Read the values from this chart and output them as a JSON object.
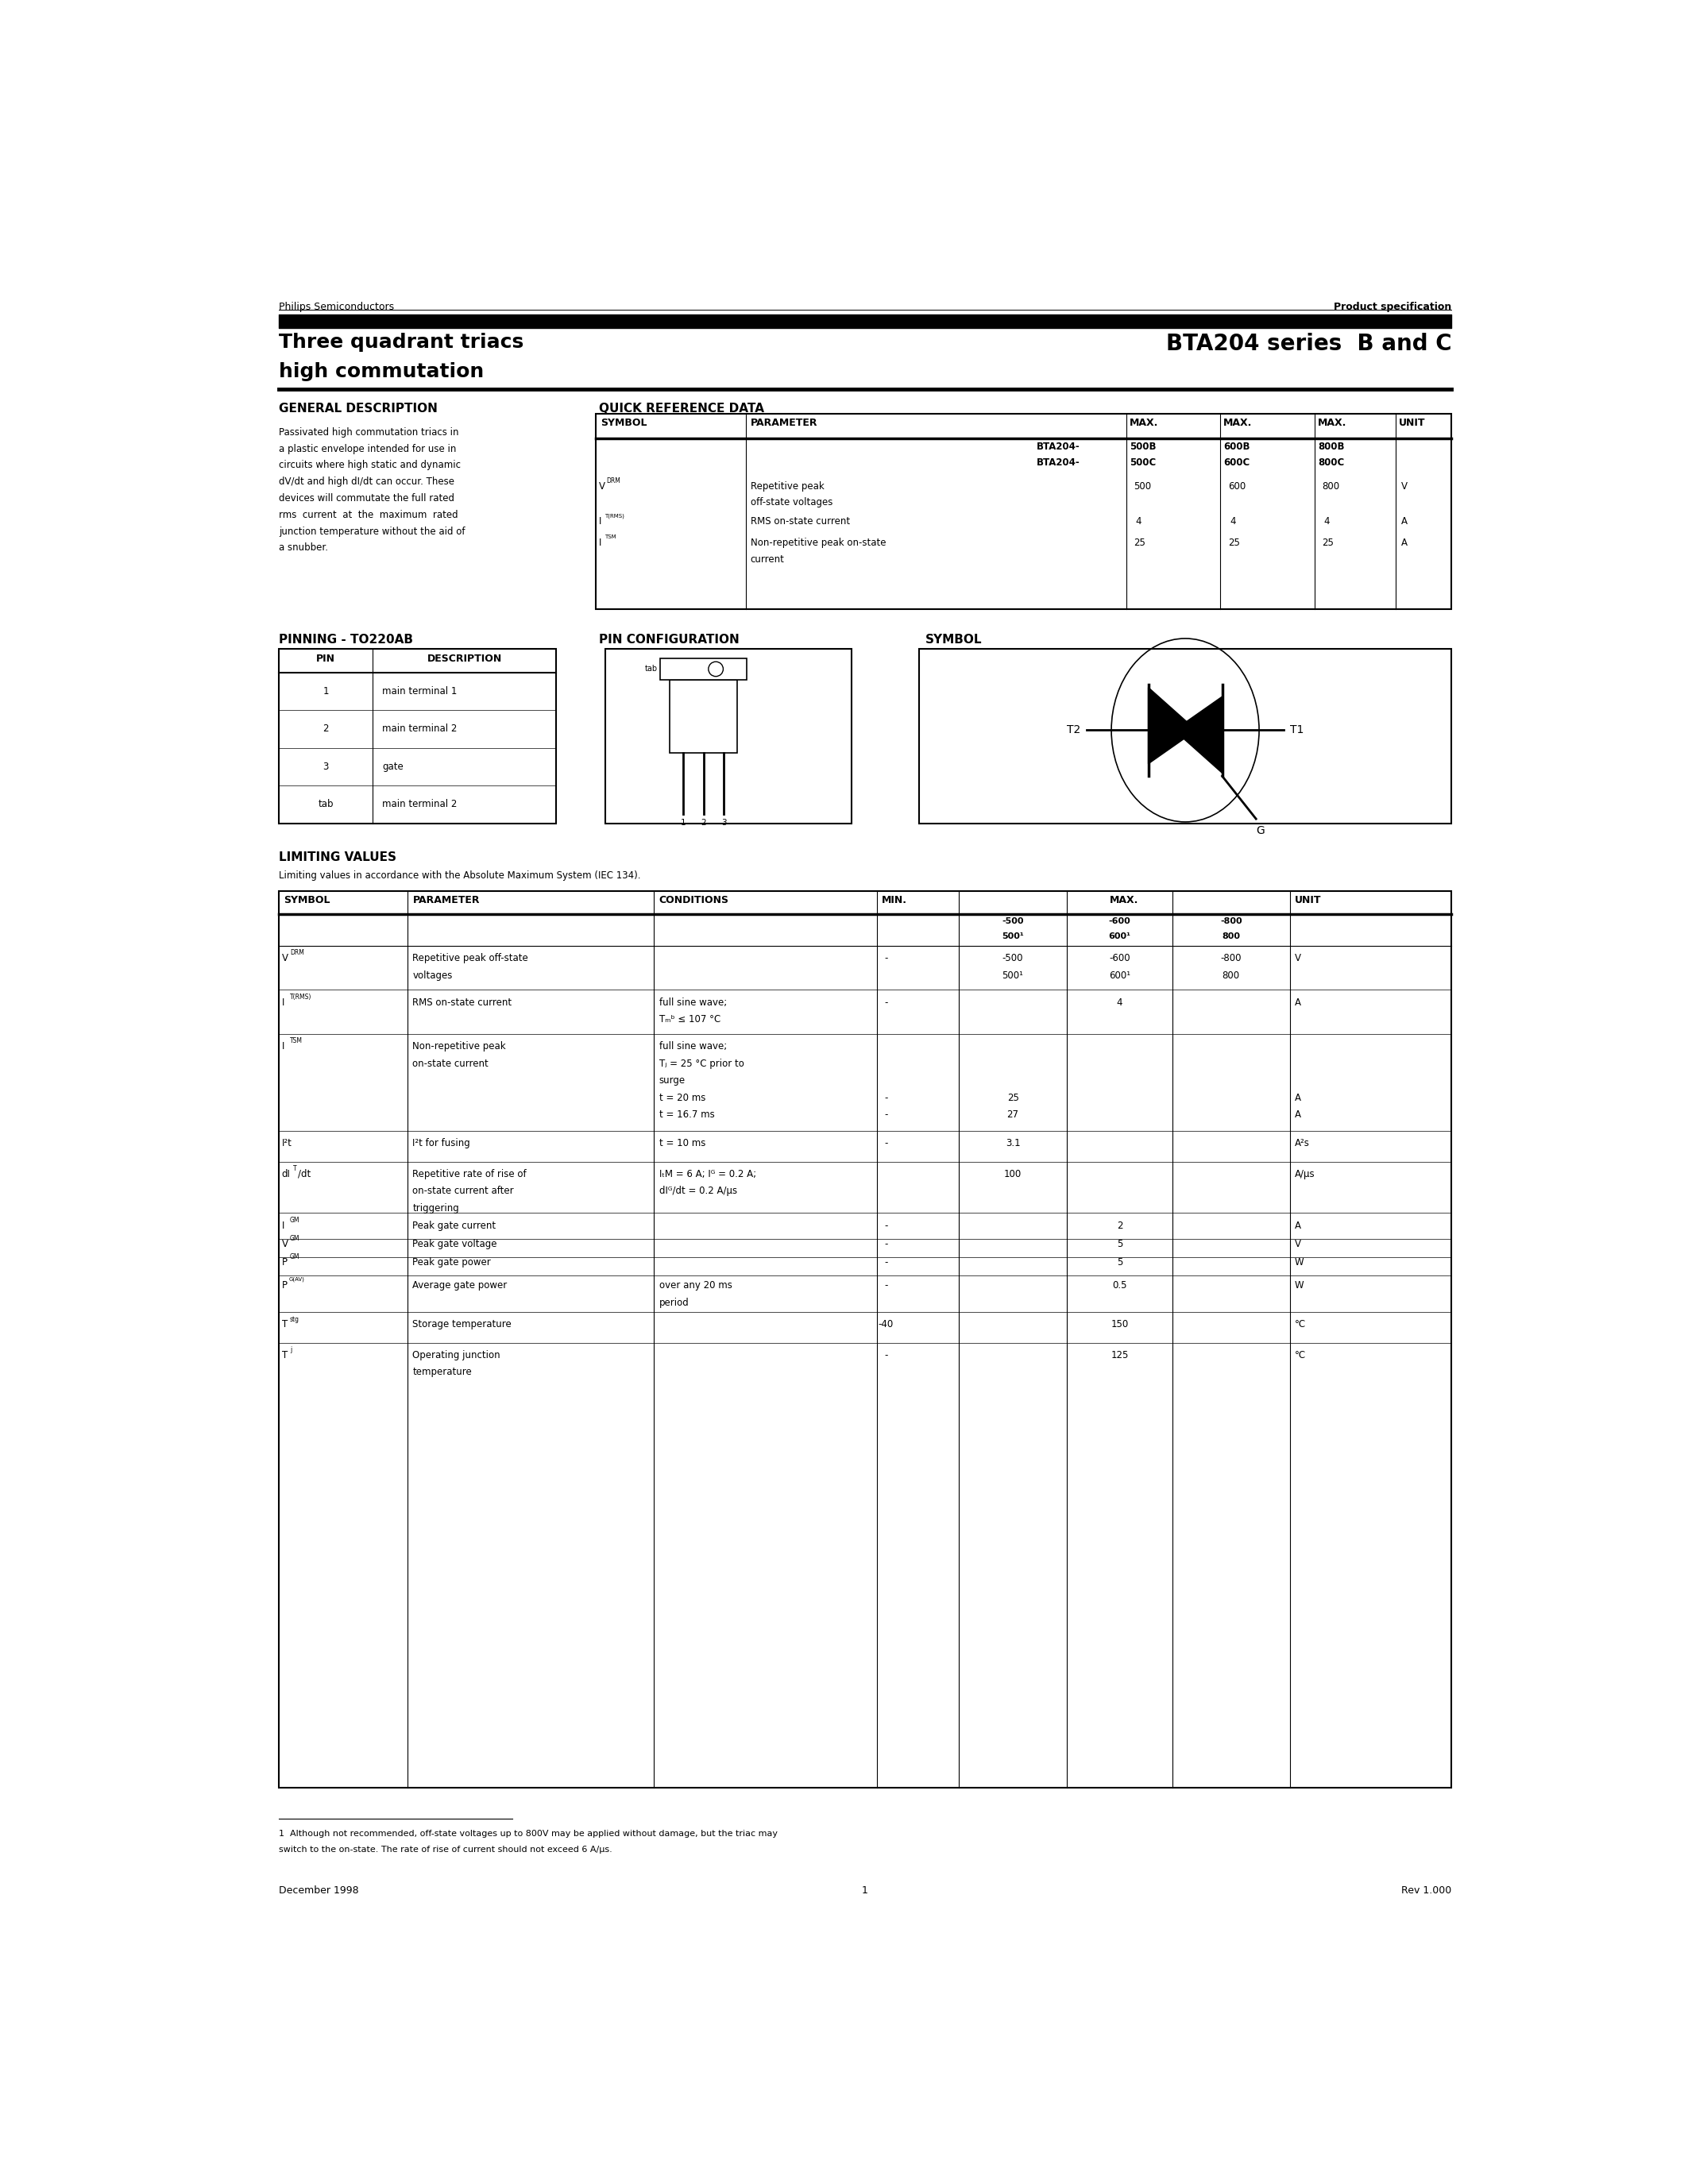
{
  "page_width": 21.25,
  "page_height": 27.5,
  "bg_color": "#ffffff",
  "header_left": "Philips Semiconductors",
  "header_right": "Product specification",
  "title_left_line1": "Three quadrant triacs",
  "title_left_line2": "high commutation",
  "title_right": "BTA204 series  B and C",
  "gen_desc_text": "Passivated high commutation triacs in\na plastic envelope intended for use in\ncircuits where high static and dynamic\ndV/dt and high dI/dt can occur. These\ndevices will commutate the full rated\nrms  current  at  the  maximum  rated\njunction temperature without the aid of\na snubber.",
  "limiting_sub": "Limiting values in accordance with the Absolute Maximum System (IEC 134).",
  "footer_left": "December 1998",
  "footer_center": "1",
  "footer_right": "Rev 1.000",
  "footnote_line1": "1  Although not recommended, off-state voltages up to 800V may be applied without damage, but the triac may",
  "footnote_line2": "switch to the on-state. The rate of rise of current should not exceed 6 A/µs."
}
